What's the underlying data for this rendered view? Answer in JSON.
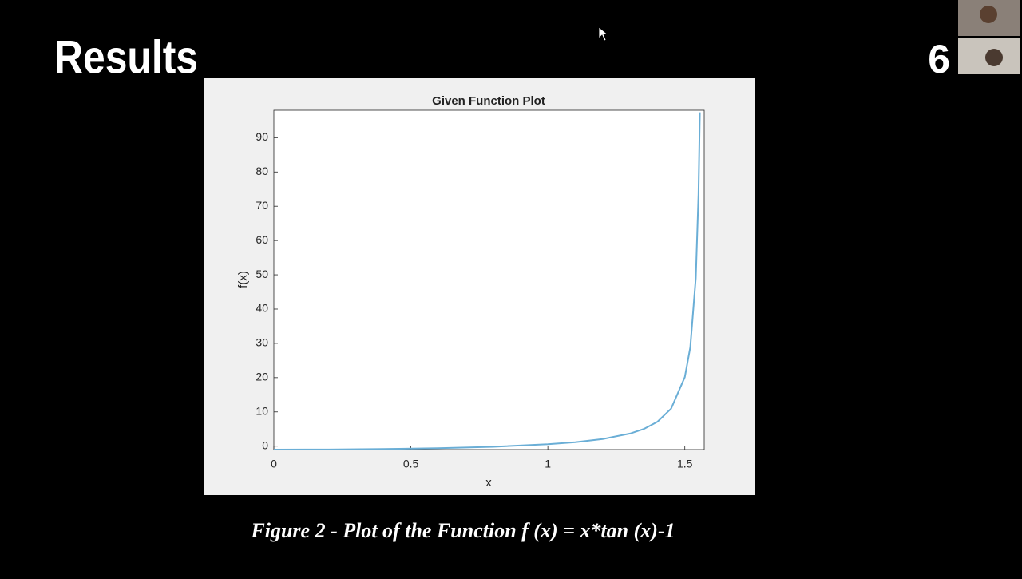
{
  "slide": {
    "title": "Results",
    "page_number": "6",
    "caption": "Figure 2 - Plot of the Function f (x) = x*tan (x)-1"
  },
  "chart_data": {
    "type": "line",
    "title": "Given Function Plot",
    "x_label": "x",
    "y_label": "f(x)",
    "x": [
      0,
      0.2,
      0.4,
      0.6,
      0.8,
      1.0,
      1.1,
      1.2,
      1.3,
      1.35,
      1.4,
      1.45,
      1.5,
      1.52,
      1.54,
      1.55,
      1.555
    ],
    "values": [
      -1,
      -0.96,
      -0.83,
      -0.59,
      -0.18,
      0.56,
      1.16,
      2.09,
      3.68,
      5.01,
      7.12,
      10.95,
      20.15,
      28.9,
      49.0,
      73.5,
      97.4
    ],
    "color": "#6aaed6",
    "xlim": [
      0,
      1.5708
    ],
    "ylim": [
      -1,
      98
    ],
    "xticks": [
      0,
      0.5,
      1,
      1.5
    ],
    "yticks": [
      0,
      10,
      20,
      30,
      40,
      50,
      60,
      70,
      80,
      90
    ],
    "grid": false
  }
}
